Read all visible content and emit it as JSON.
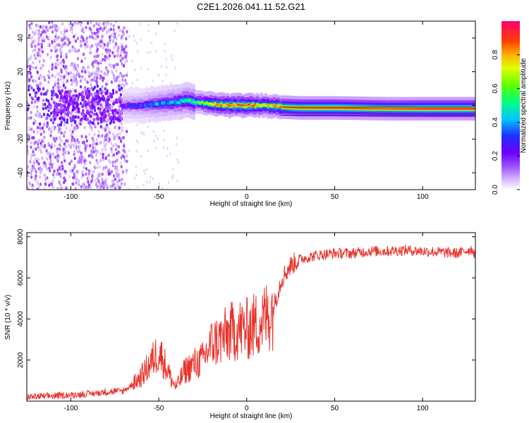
{
  "figure_title": "C2E1.2026.041.11.52.G21",
  "colors": {
    "snr_line": "#e8332c",
    "frame": "#000000"
  },
  "chart_data": [
    {
      "type": "heatmap",
      "name": "spectrogram",
      "xlabel": "Height of straight line (km)",
      "ylabel": "Frequency (Hz)",
      "xlim": [
        -125,
        130
      ],
      "ylim": [
        -50,
        50
      ],
      "x_ticks": [
        -100,
        -50,
        0,
        50,
        100
      ],
      "x_tick_labels": [
        "-100",
        "-50",
        "0",
        "50",
        "100"
      ],
      "y_ticks": [
        -40,
        -20,
        0,
        20,
        40
      ],
      "y_tick_labels": [
        "-40",
        "-20",
        "0",
        "20",
        "40"
      ],
      "colorbar": {
        "label": "Normalized spectral amplitude",
        "range": [
          0,
          1
        ],
        "ticks": [
          0.0,
          0.2,
          0.4,
          0.6,
          0.8
        ],
        "tick_labels": [
          "0.0",
          "0.2",
          "0.4",
          "0.6",
          "0.8"
        ],
        "colormap": [
          "#ffffff",
          "#c8a0ff",
          "#8000ff",
          "#2040ff",
          "#00d0ff",
          "#00ff60",
          "#a0ff00",
          "#ffe000",
          "#ff6000",
          "#ff0060"
        ]
      },
      "ridge": {
        "description": "dominant frequency trace vs height",
        "x": [
          -70,
          -60,
          -50,
          -40,
          -35,
          -30,
          -20,
          -10,
          0,
          10,
          20,
          30,
          50,
          80,
          100,
          130
        ],
        "frequency": [
          0,
          0,
          1,
          2,
          3,
          2,
          1,
          0,
          0,
          0,
          -1,
          -1.5,
          -1.5,
          -2,
          -2,
          -2
        ],
        "amplitude": [
          0.25,
          0.3,
          0.4,
          0.45,
          0.5,
          0.55,
          0.8,
          0.85,
          0.9,
          0.75,
          0.85,
          0.9,
          0.92,
          0.88,
          0.93,
          0.93
        ]
      }
    },
    {
      "type": "line",
      "name": "snr",
      "xlabel": "Height of straight line (km)",
      "ylabel": "SNR (10 * v/v)",
      "xlim": [
        -125,
        130
      ],
      "ylim": [
        0,
        8200
      ],
      "x_ticks": [
        -100,
        -50,
        0,
        50,
        100
      ],
      "x_tick_labels": [
        "-100",
        "-50",
        "0",
        "50",
        "100"
      ],
      "y_ticks": [
        2000,
        4000,
        6000,
        8000
      ],
      "y_tick_labels": [
        "2000",
        "4000",
        "6000",
        "8000"
      ],
      "x": [
        -125,
        -110,
        -100,
        -90,
        -80,
        -70,
        -65,
        -60,
        -55,
        -52,
        -50,
        -48,
        -45,
        -42,
        -40,
        -35,
        -30,
        -25,
        -20,
        -15,
        -10,
        -5,
        0,
        5,
        10,
        15,
        20,
        25,
        30,
        40,
        50,
        60,
        70,
        80,
        90,
        100,
        110,
        120,
        128,
        130
      ],
      "values": [
        200,
        250,
        300,
        350,
        450,
        500,
        800,
        1200,
        1800,
        2200,
        2400,
        2100,
        1500,
        900,
        700,
        1500,
        1800,
        2000,
        2800,
        3000,
        3300,
        3500,
        3500,
        3700,
        4000,
        4500,
        6000,
        6600,
        6900,
        7100,
        7200,
        7200,
        7300,
        7300,
        7350,
        7300,
        7250,
        7200,
        7400,
        7100
      ]
    }
  ]
}
